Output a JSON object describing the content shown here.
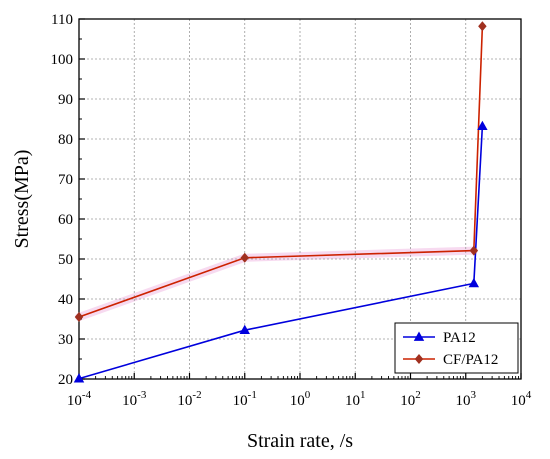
{
  "chart_data": {
    "type": "line",
    "xscale": "log10",
    "xlim_exponent": [
      -4,
      4
    ],
    "ylim": [
      20,
      110
    ],
    "ylabel": "Stress(MPa)",
    "xlabel": "Strain rate, /s",
    "grid": true,
    "legend_position": "bottom-right",
    "y_ticks": [
      "20",
      "30",
      "40",
      "50",
      "60",
      "70",
      "80",
      "90",
      "100",
      "110"
    ],
    "x_tick_exponents": [
      "-4",
      "-3",
      "-2",
      "-1",
      "0",
      "1",
      "2",
      "3",
      "4"
    ],
    "x_tick_base": "10",
    "series": [
      {
        "name": "PA12",
        "color": "#0000dd",
        "marker": "triangle",
        "x": [
          0.0001,
          0.1,
          1400,
          2000
        ],
        "y": [
          20.1,
          32.2,
          43.9,
          83.2
        ]
      },
      {
        "name": "CF/PA12",
        "color": "#cc2200",
        "marker": "diamond",
        "marker_color": "#a0301f",
        "x": [
          0.0001,
          0.1,
          1400,
          2000
        ],
        "y": [
          35.5,
          50.3,
          52.1,
          108.2
        ]
      }
    ]
  }
}
